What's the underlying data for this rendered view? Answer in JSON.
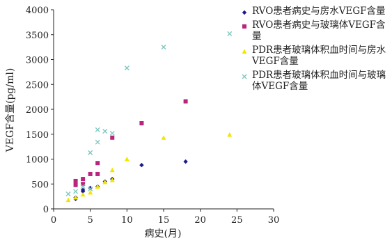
{
  "chart_data": {
    "type": "scatter",
    "xlabel": "病史(月)",
    "ylabel": "VEGF含量(pg/ml)",
    "xlim": [
      0,
      30
    ],
    "ylim": [
      0,
      4000
    ],
    "xticks": [
      "0",
      "5",
      "10",
      "15",
      "20",
      "25",
      "30"
    ],
    "yticks": [
      "0",
      "500",
      "1000",
      "1500",
      "2000",
      "2500",
      "3000",
      "3500",
      "4000"
    ],
    "grid": false,
    "legend_position": "top-right",
    "series": [
      {
        "name": "RVO患者病史与房水VEGF含量",
        "marker": "diamond",
        "color": "#1a1a8c",
        "points": [
          [
            3,
            200
          ],
          [
            3,
            230
          ],
          [
            4,
            350
          ],
          [
            4,
            380
          ],
          [
            5,
            420
          ],
          [
            6,
            450
          ],
          [
            7,
            550
          ],
          [
            8,
            600
          ],
          [
            12,
            880
          ],
          [
            18,
            950
          ]
        ]
      },
      {
        "name": "RVO患者病史与玻璃体VEGF含量",
        "marker": "square",
        "color": "#b8247e",
        "points": [
          [
            3,
            480
          ],
          [
            3,
            560
          ],
          [
            4,
            500
          ],
          [
            4,
            600
          ],
          [
            5,
            700
          ],
          [
            6,
            700
          ],
          [
            6,
            920
          ],
          [
            8,
            1430
          ],
          [
            12,
            1720
          ],
          [
            18,
            2160
          ]
        ]
      },
      {
        "name": "PDR患者玻璃体积血时间与房水VEGF含量",
        "marker": "triangle",
        "color": "#f2e600",
        "points": [
          [
            2,
            180
          ],
          [
            3,
            230
          ],
          [
            4,
            290
          ],
          [
            5,
            330
          ],
          [
            6,
            450
          ],
          [
            7,
            540
          ],
          [
            8,
            580
          ],
          [
            8,
            780
          ],
          [
            10,
            1000
          ],
          [
            15,
            1430
          ],
          [
            24,
            1490
          ]
        ]
      },
      {
        "name": "PDR患者玻璃体积血时间与玻璃体VEGF含量",
        "marker": "x",
        "color": "#7ec8c0",
        "points": [
          [
            2,
            300
          ],
          [
            3,
            350
          ],
          [
            4,
            450
          ],
          [
            5,
            400
          ],
          [
            5,
            1130
          ],
          [
            6,
            1340
          ],
          [
            6,
            1590
          ],
          [
            7,
            1560
          ],
          [
            8,
            1520
          ],
          [
            10,
            2830
          ],
          [
            15,
            3250
          ],
          [
            24,
            3520
          ]
        ]
      }
    ]
  }
}
